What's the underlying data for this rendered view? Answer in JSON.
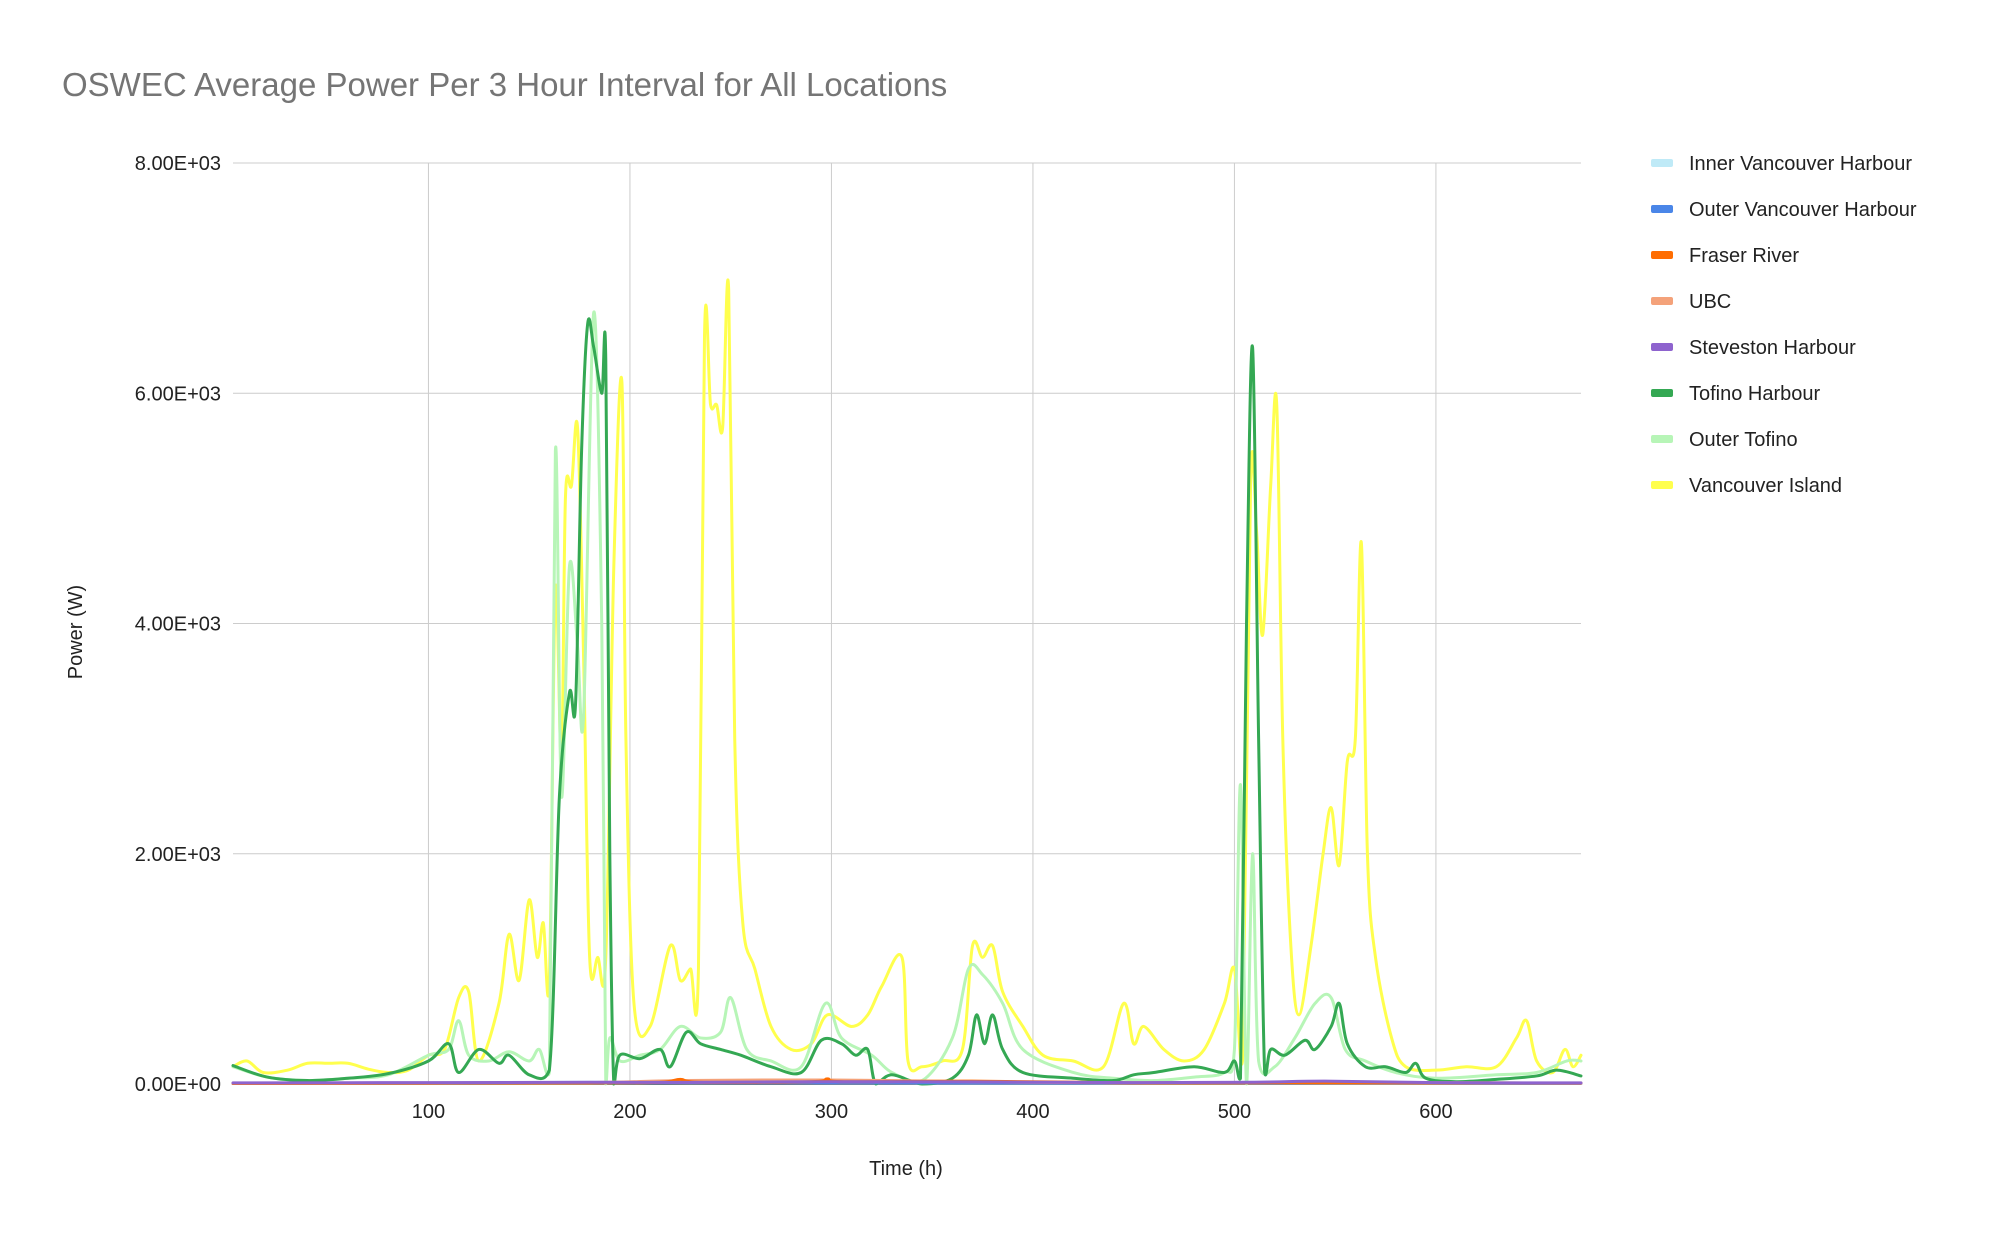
{
  "chart_data": {
    "type": "line",
    "title": "OSWEC Average Power Per 3 Hour Interval for All Locations",
    "xlabel": "Time (h)",
    "ylabel": "Power (W)",
    "xlim": [
      3,
      672
    ],
    "ylim": [
      0,
      8000
    ],
    "x_ticks": [
      100,
      200,
      300,
      400,
      500,
      600
    ],
    "x_tick_labels": [
      "100",
      "200",
      "300",
      "400",
      "500",
      "600"
    ],
    "y_ticks": [
      0,
      2000,
      4000,
      6000,
      8000
    ],
    "y_tick_labels": [
      "0.00E+00",
      "2.00E+03",
      "4.00E+03",
      "6.00E+03",
      "8.00E+03"
    ],
    "grid": true,
    "legend_position": "right",
    "series": [
      {
        "name": "Inner Vancouver Harbour",
        "color": "#bfeaf7",
        "points": [
          [
            3,
            5
          ],
          [
            60,
            8
          ],
          [
            120,
            10
          ],
          [
            180,
            15
          ],
          [
            230,
            12
          ],
          [
            300,
            14
          ],
          [
            370,
            12
          ],
          [
            450,
            10
          ],
          [
            510,
            14
          ],
          [
            560,
            12
          ],
          [
            620,
            10
          ],
          [
            672,
            8
          ]
        ]
      },
      {
        "name": "Outer Vancouver Harbour",
        "color": "#4a86e8",
        "points": [
          [
            3,
            4
          ],
          [
            60,
            6
          ],
          [
            120,
            8
          ],
          [
            180,
            10
          ],
          [
            230,
            12
          ],
          [
            300,
            10
          ],
          [
            370,
            9
          ],
          [
            450,
            8
          ],
          [
            510,
            10
          ],
          [
            560,
            9
          ],
          [
            620,
            8
          ],
          [
            672,
            6
          ]
        ]
      },
      {
        "name": "Fraser River",
        "color": "#ff6d01",
        "points": [
          [
            3,
            5
          ],
          [
            100,
            8
          ],
          [
            180,
            10
          ],
          [
            215,
            15
          ],
          [
            225,
            40
          ],
          [
            235,
            15
          ],
          [
            290,
            20
          ],
          [
            298,
            45
          ],
          [
            306,
            20
          ],
          [
            370,
            25
          ],
          [
            450,
            10
          ],
          [
            520,
            12
          ],
          [
            600,
            10
          ],
          [
            672,
            8
          ]
        ]
      },
      {
        "name": "UBC",
        "color": "#f4a27a",
        "points": [
          [
            3,
            5
          ],
          [
            100,
            8
          ],
          [
            180,
            12
          ],
          [
            228,
            30
          ],
          [
            300,
            35
          ],
          [
            370,
            20
          ],
          [
            450,
            10
          ],
          [
            520,
            12
          ],
          [
            600,
            10
          ],
          [
            672,
            8
          ]
        ]
      },
      {
        "name": "Steveston Harbour",
        "color": "#8e63ce",
        "points": [
          [
            3,
            10
          ],
          [
            100,
            12
          ],
          [
            180,
            15
          ],
          [
            230,
            14
          ],
          [
            300,
            20
          ],
          [
            370,
            18
          ],
          [
            450,
            12
          ],
          [
            510,
            15
          ],
          [
            545,
            25
          ],
          [
            600,
            12
          ],
          [
            672,
            10
          ]
        ]
      },
      {
        "name": "Tofino Harbour",
        "color": "#34a853",
        "points": [
          [
            3,
            160
          ],
          [
            20,
            60
          ],
          [
            40,
            30
          ],
          [
            60,
            50
          ],
          [
            80,
            90
          ],
          [
            100,
            200
          ],
          [
            110,
            350
          ],
          [
            115,
            100
          ],
          [
            125,
            300
          ],
          [
            135,
            180
          ],
          [
            140,
            250
          ],
          [
            150,
            80
          ],
          [
            160,
            120
          ],
          [
            165,
            2500
          ],
          [
            170,
            3400
          ],
          [
            173,
            3300
          ],
          [
            176,
            5500
          ],
          [
            179,
            6600
          ],
          [
            182,
            6400
          ],
          [
            186,
            6000
          ],
          [
            188,
            6300
          ],
          [
            190,
            2000
          ],
          [
            192,
            0
          ],
          [
            195,
            250
          ],
          [
            205,
            220
          ],
          [
            215,
            300
          ],
          [
            220,
            150
          ],
          [
            228,
            450
          ],
          [
            235,
            350
          ],
          [
            245,
            300
          ],
          [
            255,
            250
          ],
          [
            270,
            150
          ],
          [
            285,
            100
          ],
          [
            295,
            380
          ],
          [
            305,
            350
          ],
          [
            312,
            250
          ],
          [
            318,
            300
          ],
          [
            322,
            0
          ],
          [
            330,
            80
          ],
          [
            345,
            0
          ],
          [
            360,
            50
          ],
          [
            368,
            250
          ],
          [
            372,
            600
          ],
          [
            376,
            350
          ],
          [
            380,
            600
          ],
          [
            385,
            300
          ],
          [
            395,
            100
          ],
          [
            420,
            50
          ],
          [
            440,
            30
          ],
          [
            450,
            80
          ],
          [
            460,
            100
          ],
          [
            480,
            150
          ],
          [
            495,
            100
          ],
          [
            500,
            200
          ],
          [
            503,
            50
          ],
          [
            506,
            4000
          ],
          [
            509,
            6400
          ],
          [
            512,
            3000
          ],
          [
            515,
            100
          ],
          [
            518,
            300
          ],
          [
            525,
            250
          ],
          [
            535,
            380
          ],
          [
            540,
            300
          ],
          [
            548,
            500
          ],
          [
            552,
            700
          ],
          [
            556,
            350
          ],
          [
            565,
            150
          ],
          [
            575,
            150
          ],
          [
            585,
            100
          ],
          [
            590,
            180
          ],
          [
            595,
            50
          ],
          [
            610,
            20
          ],
          [
            630,
            40
          ],
          [
            650,
            70
          ],
          [
            660,
            120
          ],
          [
            672,
            70
          ]
        ]
      },
      {
        "name": "Outer Tofino",
        "color": "#b7f5b7",
        "points": [
          [
            3,
            150
          ],
          [
            20,
            60
          ],
          [
            40,
            30
          ],
          [
            60,
            50
          ],
          [
            80,
            80
          ],
          [
            100,
            250
          ],
          [
            110,
            300
          ],
          [
            115,
            550
          ],
          [
            120,
            250
          ],
          [
            130,
            200
          ],
          [
            140,
            280
          ],
          [
            150,
            200
          ],
          [
            155,
            300
          ],
          [
            160,
            100
          ],
          [
            163,
            5500
          ],
          [
            166,
            2500
          ],
          [
            170,
            4500
          ],
          [
            174,
            3800
          ],
          [
            177,
            3200
          ],
          [
            182,
            6700
          ],
          [
            186,
            4000
          ],
          [
            188,
            0
          ],
          [
            190,
            400
          ],
          [
            195,
            200
          ],
          [
            205,
            250
          ],
          [
            215,
            300
          ],
          [
            225,
            500
          ],
          [
            235,
            400
          ],
          [
            245,
            450
          ],
          [
            250,
            750
          ],
          [
            258,
            300
          ],
          [
            270,
            200
          ],
          [
            285,
            150
          ],
          [
            297,
            700
          ],
          [
            305,
            400
          ],
          [
            320,
            250
          ],
          [
            330,
            100
          ],
          [
            345,
            30
          ],
          [
            360,
            400
          ],
          [
            368,
            1000
          ],
          [
            375,
            950
          ],
          [
            385,
            700
          ],
          [
            395,
            300
          ],
          [
            420,
            100
          ],
          [
            440,
            50
          ],
          [
            460,
            30
          ],
          [
            480,
            60
          ],
          [
            495,
            100
          ],
          [
            500,
            300
          ],
          [
            503,
            2600
          ],
          [
            506,
            0
          ],
          [
            509,
            2000
          ],
          [
            512,
            200
          ],
          [
            520,
            150
          ],
          [
            530,
            400
          ],
          [
            540,
            700
          ],
          [
            548,
            750
          ],
          [
            555,
            300
          ],
          [
            565,
            200
          ],
          [
            580,
            100
          ],
          [
            600,
            50
          ],
          [
            630,
            80
          ],
          [
            650,
            100
          ],
          [
            665,
            200
          ],
          [
            672,
            200
          ]
        ]
      },
      {
        "name": "Vancouver Island",
        "color": "#ffff4d",
        "points": [
          [
            3,
            150
          ],
          [
            10,
            200
          ],
          [
            18,
            100
          ],
          [
            30,
            120
          ],
          [
            40,
            180
          ],
          [
            50,
            180
          ],
          [
            60,
            180
          ],
          [
            70,
            130
          ],
          [
            80,
            100
          ],
          [
            90,
            120
          ],
          [
            100,
            250
          ],
          [
            108,
            300
          ],
          [
            115,
            750
          ],
          [
            120,
            800
          ],
          [
            125,
            200
          ],
          [
            135,
            700
          ],
          [
            140,
            1300
          ],
          [
            145,
            900
          ],
          [
            150,
            1600
          ],
          [
            154,
            1100
          ],
          [
            157,
            1400
          ],
          [
            160,
            900
          ],
          [
            163,
            4300
          ],
          [
            166,
            2800
          ],
          [
            168,
            5100
          ],
          [
            171,
            5200
          ],
          [
            174,
            5700
          ],
          [
            177,
            3700
          ],
          [
            180,
            1100
          ],
          [
            184,
            1100
          ],
          [
            188,
            1100
          ],
          [
            192,
            4500
          ],
          [
            196,
            6100
          ],
          [
            198,
            3000
          ],
          [
            202,
            700
          ],
          [
            210,
            500
          ],
          [
            220,
            1200
          ],
          [
            225,
            900
          ],
          [
            230,
            1000
          ],
          [
            234,
            1000
          ],
          [
            237,
            6500
          ],
          [
            240,
            5900
          ],
          [
            243,
            5900
          ],
          [
            246,
            5700
          ],
          [
            249,
            6900
          ],
          [
            252,
            3000
          ],
          [
            256,
            1400
          ],
          [
            262,
            1000
          ],
          [
            270,
            500
          ],
          [
            280,
            300
          ],
          [
            290,
            350
          ],
          [
            298,
            600
          ],
          [
            310,
            500
          ],
          [
            318,
            600
          ],
          [
            325,
            850
          ],
          [
            335,
            1100
          ],
          [
            338,
            200
          ],
          [
            345,
            150
          ],
          [
            355,
            200
          ],
          [
            365,
            300
          ],
          [
            370,
            1200
          ],
          [
            375,
            1100
          ],
          [
            380,
            1200
          ],
          [
            385,
            800
          ],
          [
            395,
            500
          ],
          [
            405,
            250
          ],
          [
            420,
            200
          ],
          [
            435,
            150
          ],
          [
            445,
            700
          ],
          [
            450,
            350
          ],
          [
            455,
            500
          ],
          [
            465,
            300
          ],
          [
            475,
            200
          ],
          [
            485,
            300
          ],
          [
            495,
            700
          ],
          [
            500,
            1000
          ],
          [
            504,
            200
          ],
          [
            508,
            5200
          ],
          [
            511,
            4800
          ],
          [
            514,
            3900
          ],
          [
            518,
            5200
          ],
          [
            521,
            5900
          ],
          [
            524,
            3000
          ],
          [
            528,
            1200
          ],
          [
            532,
            600
          ],
          [
            538,
            1200
          ],
          [
            544,
            2000
          ],
          [
            548,
            2400
          ],
          [
            552,
            1900
          ],
          [
            556,
            2800
          ],
          [
            560,
            3000
          ],
          [
            563,
            4700
          ],
          [
            566,
            2000
          ],
          [
            570,
            1100
          ],
          [
            578,
            400
          ],
          [
            585,
            150
          ],
          [
            600,
            120
          ],
          [
            615,
            150
          ],
          [
            630,
            150
          ],
          [
            640,
            400
          ],
          [
            645,
            550
          ],
          [
            650,
            200
          ],
          [
            658,
            100
          ],
          [
            664,
            300
          ],
          [
            668,
            150
          ],
          [
            672,
            250
          ]
        ]
      }
    ]
  }
}
